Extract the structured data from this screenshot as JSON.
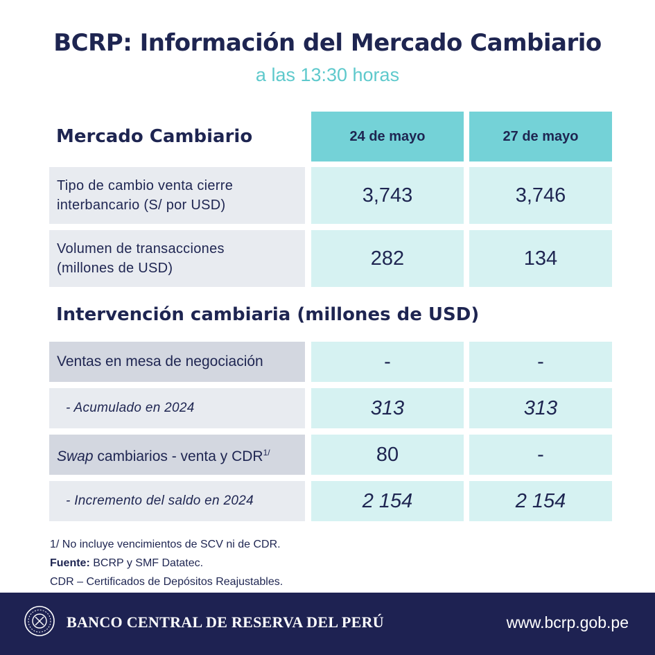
{
  "header": {
    "title": "BCRP: Información del Mercado Cambiario",
    "subtitle": "a las 13:30 horas"
  },
  "market": {
    "heading": "Mercado Cambiario",
    "dates": [
      "24 de mayo",
      "27 de mayo"
    ],
    "rows": [
      {
        "label_line1": "Tipo de cambio venta cierre",
        "label_line2": "interbancario (S/ por USD)",
        "values": [
          "3,743",
          "3,746"
        ]
      },
      {
        "label_line1": "Volumen de transacciones",
        "label_line2": "(millones de USD)",
        "values": [
          "282",
          "134"
        ]
      }
    ]
  },
  "intervention": {
    "heading": "Intervención cambiaria (millones de USD)",
    "rows": [
      {
        "label": "Ventas en mesa de negociación",
        "values": [
          "-",
          "-"
        ]
      },
      {
        "label": "-  Acumulado  en 2024",
        "values": [
          "313",
          "313"
        ]
      },
      {
        "label_italic": "Swap",
        "label_rest": " cambiarios - venta y CDR",
        "label_sup": "1/",
        "values": [
          "80",
          "-"
        ]
      },
      {
        "label": "-  Incremento  del saldo en 2024",
        "values": [
          "2 154",
          "2 154"
        ]
      }
    ]
  },
  "notes": {
    "note1": "1/ No incluye vencimientos de SCV ni de CDR.",
    "source_label": "Fuente:",
    "source_text": " BCRP y SMF Datatec.",
    "note3": "CDR – Certificados de Depósitos Reajustables."
  },
  "footer": {
    "logo_icon": "bcrp-seal-icon",
    "bank_name": "BANCO CENTRAL DE RESERVA DEL PERÚ",
    "website": "www.bcrp.gob.pe"
  },
  "colors": {
    "navy": "#1e2551",
    "teal_header": "#74d2d7",
    "teal_light": "#d6f2f2",
    "label_gray": "#e8ebf0",
    "label_gray_dark": "#d3d7e0",
    "subtitle": "#5ec9cc"
  }
}
